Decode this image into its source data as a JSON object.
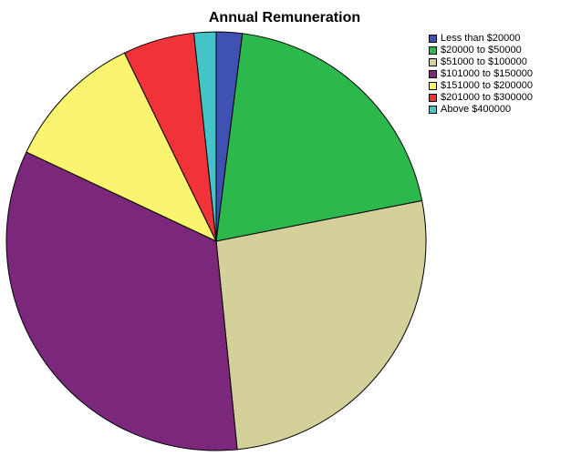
{
  "chart_data": {
    "type": "pie",
    "title": "Annual Remuneration",
    "categories": [
      "Less than $20000",
      "$20000 to $50000",
      "$51000 to $100000",
      "$101000 to $150000",
      "$151000 to $200000",
      "$201000 to $300000",
      "Above $400000"
    ],
    "values": [
      2.0,
      19.9,
      26.5,
      33.6,
      10.8,
      5.5,
      1.7
    ],
    "colors": [
      "#3f51b1",
      "#2db84b",
      "#d4d09a",
      "#7b277b",
      "#faf56e",
      "#ef3339",
      "#45c4c7"
    ],
    "legend_position": "top-right"
  }
}
